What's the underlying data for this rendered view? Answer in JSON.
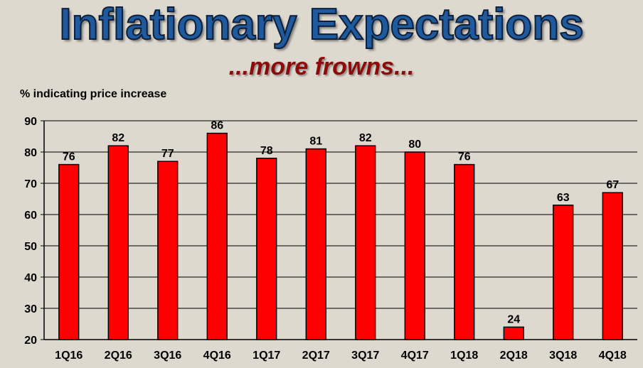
{
  "title": "Inflationary Expectations",
  "subtitle": "...more frowns...",
  "chart_data": {
    "type": "bar",
    "ylabel": "% indicating price increase",
    "xlabel": "",
    "ylim": [
      20,
      90
    ],
    "yticks": [
      20,
      30,
      40,
      50,
      60,
      70,
      80,
      90
    ],
    "grid": true,
    "bar_color": "#ff0000",
    "categories": [
      "1Q16",
      "2Q16",
      "3Q16",
      "4Q16",
      "1Q17",
      "2Q17",
      "3Q17",
      "4Q17",
      "1Q18",
      "2Q18",
      "3Q18",
      "4Q18"
    ],
    "values": [
      76,
      82,
      77,
      86,
      78,
      81,
      82,
      80,
      76,
      24,
      63,
      67
    ]
  }
}
